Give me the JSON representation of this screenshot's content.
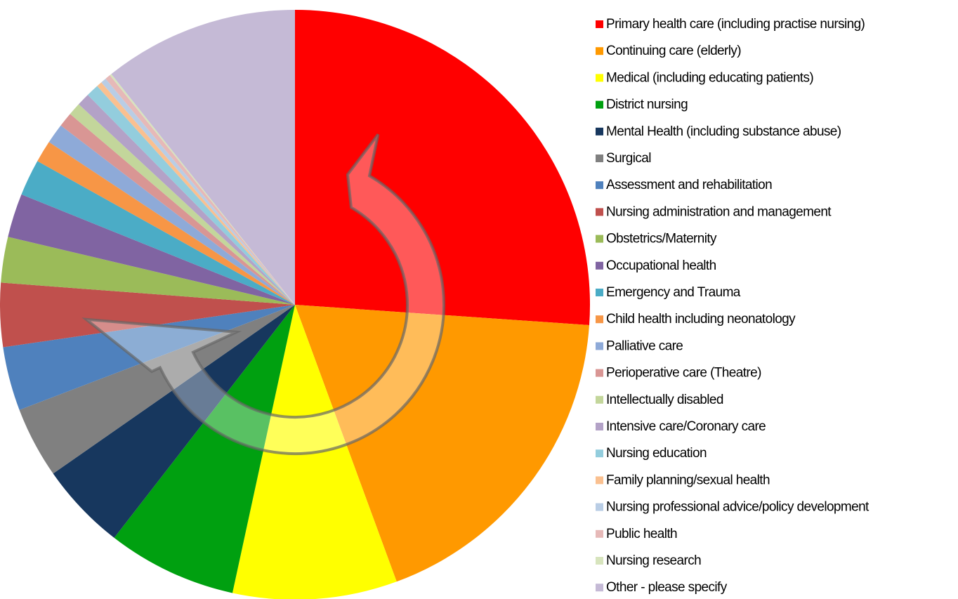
{
  "chart_data": {
    "type": "pie",
    "categories": [
      "Primary health care (including practise nursing)",
      "Continuing care (elderly)",
      "Medical (including educating patients)",
      "District nursing",
      "Mental Health  (including substance abuse)",
      "Surgical",
      "Assessment and rehabilitation",
      "Nursing administration and management",
      "Obstetrics/Maternity",
      "Occupational health",
      "Emergency and Trauma",
      "Child health including neonatology",
      "Palliative  care",
      "Perioperative care (Theatre)",
      "Intellectually disabled",
      "Intensive care/Coronary care",
      "Nursing education",
      "Family planning/sexual health",
      "Nursing professional advice/policy development",
      "Public health",
      "Nursing research",
      "Other - please specify"
    ],
    "values": [
      26.1,
      18.3,
      9.0,
      7.1,
      4.8,
      3.9,
      3.5,
      3.5,
      2.5,
      2.4,
      2.0,
      1.2,
      1.1,
      0.8,
      0.7,
      0.7,
      0.7,
      0.3,
      0.3,
      0.3,
      0.1,
      10.7
    ],
    "colors": [
      "#ff0000",
      "#ff9900",
      "#ffff00",
      "#00a010",
      "#17375e",
      "#808080",
      "#4f81bd",
      "#c0504d",
      "#9bbb59",
      "#8064a2",
      "#4bacc6",
      "#f79646",
      "#8eaad8",
      "#d99694",
      "#c3d69b",
      "#b3a2c7",
      "#93cddd",
      "#fac090",
      "#b9cde5",
      "#e6b9b8",
      "#d7e4bd",
      "#c5bad6"
    ],
    "legend": "right"
  }
}
